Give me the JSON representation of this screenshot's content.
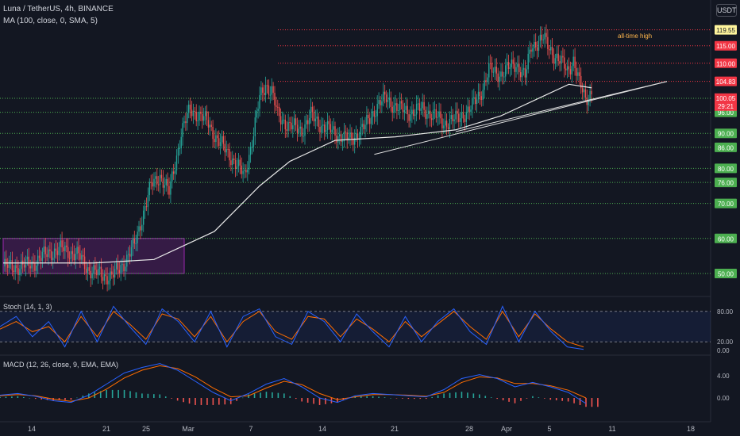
{
  "header": {
    "symbol": "Luna / TetherUS, 4h, BINANCE",
    "ma": "MA (100, close, 0, SMA, 5)",
    "currency_button": "USDT"
  },
  "stoch": {
    "label": "Stoch (14, 1, 3)",
    "scale": [
      "80.00",
      "20.00",
      "0.00"
    ]
  },
  "macd": {
    "label": "MACD (12, 26, close, 9, EMA, EMA)",
    "scale": [
      "4.00",
      "0.00"
    ]
  },
  "annotations": {
    "ath": "all-time high"
  },
  "colors": {
    "up": "#26a69a",
    "down": "#ef5350",
    "ma": "#e8e8e8",
    "bg": "#131722",
    "green_level": "#4caf50",
    "red_level": "#f23645",
    "box": "#9c27b0",
    "stoch_k": "#2962ff",
    "stoch_d": "#ff6d00"
  },
  "chart_data": {
    "type": "candlestick",
    "title": "Luna / TetherUS, 4h, BINANCE",
    "x_ticks": [
      "14",
      "21",
      "25",
      "Mar",
      "7",
      "14",
      "21",
      "28",
      "Apr",
      "5",
      "11",
      "18"
    ],
    "price_levels": [
      {
        "value": "119.55",
        "kind": "red"
      },
      {
        "value": "115.00",
        "kind": "red"
      },
      {
        "value": "110.00",
        "kind": "red"
      },
      {
        "value": "104.83",
        "kind": "red"
      },
      {
        "value": "100.00",
        "kind": "green"
      },
      {
        "value": "96.00",
        "kind": "green"
      },
      {
        "value": "90.00",
        "kind": "green"
      },
      {
        "value": "86.00",
        "kind": "green"
      },
      {
        "value": "80.00",
        "kind": "green"
      },
      {
        "value": "76.00",
        "kind": "green"
      },
      {
        "value": "70.00",
        "kind": "green"
      },
      {
        "value": "60.00",
        "kind": "green"
      },
      {
        "value": "50.00",
        "kind": "green"
      }
    ],
    "last_price": {
      "value": "100.05",
      "countdown": "29:21"
    },
    "price_path": [
      [
        0,
        52
      ],
      [
        12,
        52
      ],
      [
        20,
        53
      ],
      [
        30,
        56
      ],
      [
        40,
        57
      ],
      [
        50,
        55
      ],
      [
        57,
        51
      ],
      [
        62,
        50
      ],
      [
        72,
        49
      ],
      [
        80,
        53
      ],
      [
        87,
        58
      ],
      [
        92,
        66
      ],
      [
        98,
        75
      ],
      [
        104,
        78
      ],
      [
        110,
        73
      ],
      [
        118,
        90
      ],
      [
        124,
        97
      ],
      [
        130,
        95
      ],
      [
        136,
        93
      ],
      [
        142,
        88
      ],
      [
        150,
        84
      ],
      [
        156,
        80
      ],
      [
        160,
        78
      ],
      [
        166,
        90
      ],
      [
        170,
        100
      ],
      [
        174,
        104
      ],
      [
        178,
        102
      ],
      [
        182,
        95
      ],
      [
        190,
        92
      ],
      [
        198,
        91
      ],
      [
        204,
        95
      ],
      [
        212,
        92
      ],
      [
        220,
        90
      ],
      [
        230,
        88
      ],
      [
        240,
        92
      ],
      [
        248,
        98
      ],
      [
        254,
        100
      ],
      [
        262,
        97
      ],
      [
        270,
        96
      ],
      [
        278,
        97
      ],
      [
        286,
        95
      ],
      [
        292,
        93
      ],
      [
        300,
        94
      ],
      [
        310,
        97
      ],
      [
        318,
        103
      ],
      [
        322,
        108
      ],
      [
        330,
        107
      ],
      [
        340,
        110
      ],
      [
        346,
        106
      ],
      [
        350,
        115
      ],
      [
        358,
        117
      ],
      [
        366,
        112
      ],
      [
        374,
        108
      ],
      [
        378,
        111
      ],
      [
        382,
        104
      ],
      [
        386,
        100
      ],
      [
        390,
        102
      ]
    ],
    "ma100_path": [
      [
        0,
        53
      ],
      [
        60,
        53
      ],
      [
        100,
        54
      ],
      [
        140,
        62
      ],
      [
        170,
        75
      ],
      [
        190,
        82
      ],
      [
        220,
        88
      ],
      [
        260,
        89
      ],
      [
        300,
        91
      ],
      [
        330,
        95
      ],
      [
        360,
        101
      ],
      [
        375,
        104
      ],
      [
        390,
        103
      ]
    ],
    "trendlines": [
      {
        "from": [
          246,
          84
        ],
        "to": [
          440,
          104.8
        ]
      },
      {
        "from": [
          300,
          90.5
        ],
        "to": [
          440,
          104.8
        ]
      }
    ],
    "consolidation_box": {
      "x": [
        0,
        120
      ],
      "y": [
        50,
        60
      ]
    },
    "stoch_k": [
      50,
      70,
      30,
      60,
      10,
      80,
      20,
      90,
      50,
      15,
      85,
      60,
      20,
      80,
      10,
      70,
      85,
      30,
      15,
      80,
      60,
      20,
      75,
      40,
      10,
      70,
      20,
      60,
      85,
      40,
      15,
      90,
      20,
      80,
      40,
      10,
      5
    ],
    "stoch_d": [
      45,
      60,
      40,
      50,
      20,
      70,
      30,
      80,
      55,
      25,
      75,
      65,
      30,
      70,
      20,
      60,
      80,
      40,
      25,
      70,
      65,
      30,
      65,
      45,
      20,
      60,
      30,
      55,
      80,
      50,
      25,
      80,
      30,
      75,
      45,
      20,
      10
    ],
    "macd_line": [
      0.5,
      0.8,
      0.3,
      -0.5,
      -0.8,
      0.5,
      2.5,
      4.5,
      5.5,
      6.2,
      5.0,
      3.0,
      1.0,
      -0.5,
      0.8,
      2.5,
      3.5,
      2.0,
      0.0,
      -0.8,
      0.4,
      0.8,
      0.6,
      0.4,
      0.2,
      1.5,
      3.5,
      4.2,
      3.5,
      2.0,
      2.8,
      2.0,
      1.0,
      -1.0
    ],
    "signal_line": [
      0.4,
      0.6,
      0.4,
      -0.2,
      -0.6,
      0.0,
      1.6,
      3.6,
      5.0,
      5.8,
      5.3,
      3.8,
      1.8,
      0.2,
      0.4,
      1.8,
      3.0,
      2.4,
      0.8,
      -0.3,
      0.2,
      0.6,
      0.6,
      0.5,
      0.3,
      1.0,
      2.8,
      3.8,
      3.6,
      2.6,
      2.6,
      2.2,
      1.4,
      0.0
    ]
  }
}
